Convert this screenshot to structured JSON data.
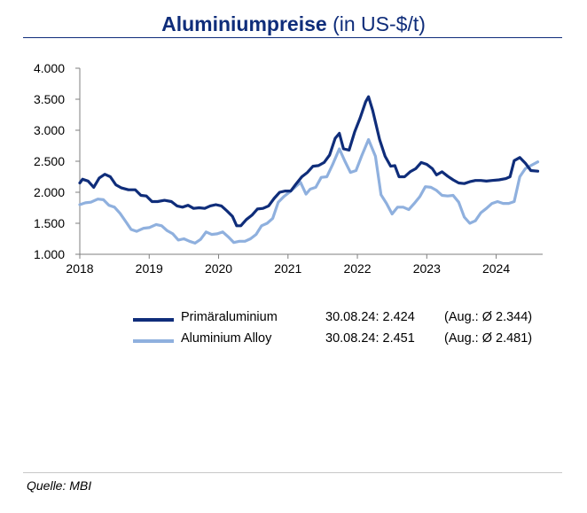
{
  "title": {
    "main": "Aluminiumpreise",
    "unit": "(in US-$/t)"
  },
  "source": "Quelle: MBI",
  "legend": [
    {
      "name": "Primäraluminium",
      "date_value": "30.08.24: 2.424",
      "average": "(Aug.: Ø 2.344)",
      "color": "#0f2d7a"
    },
    {
      "name": "Aluminium Alloy",
      "date_value": "30.08.24: 2.451",
      "average": "(Aug.: Ø 2.481)",
      "color": "#8fb0de"
    }
  ],
  "chart_data": {
    "type": "line",
    "title": "Aluminiumpreise (in US-$/t)",
    "xlabel": "",
    "ylabel": "",
    "xlim": [
      2018.0,
      2024.67
    ],
    "ylim": [
      1000,
      4000
    ],
    "x_ticks": [
      2018,
      2019,
      2020,
      2021,
      2022,
      2023,
      2024
    ],
    "x_tick_labels": [
      "2018",
      "2019",
      "2020",
      "2021",
      "2022",
      "2023",
      "2024"
    ],
    "y_ticks": [
      1000,
      1500,
      2000,
      2500,
      3000,
      3500,
      4000
    ],
    "y_tick_labels": [
      "1.000",
      "1.500",
      "2.000",
      "2.500",
      "3.000",
      "3.500",
      "4.000"
    ],
    "grid": false,
    "legend_position": "bottom",
    "series": [
      {
        "name": "Primäraluminium",
        "color": "#0f2d7a",
        "points": [
          [
            2018.0,
            2150
          ],
          [
            2018.04,
            2210
          ],
          [
            2018.12,
            2180
          ],
          [
            2018.2,
            2080
          ],
          [
            2018.28,
            2230
          ],
          [
            2018.36,
            2290
          ],
          [
            2018.44,
            2250
          ],
          [
            2018.52,
            2120
          ],
          [
            2018.6,
            2070
          ],
          [
            2018.7,
            2040
          ],
          [
            2018.8,
            2040
          ],
          [
            2018.88,
            1950
          ],
          [
            2018.96,
            1940
          ],
          [
            2019.04,
            1850
          ],
          [
            2019.12,
            1850
          ],
          [
            2019.22,
            1870
          ],
          [
            2019.32,
            1850
          ],
          [
            2019.4,
            1780
          ],
          [
            2019.48,
            1760
          ],
          [
            2019.56,
            1790
          ],
          [
            2019.64,
            1740
          ],
          [
            2019.72,
            1750
          ],
          [
            2019.8,
            1740
          ],
          [
            2019.88,
            1780
          ],
          [
            2019.96,
            1800
          ],
          [
            2020.04,
            1780
          ],
          [
            2020.12,
            1700
          ],
          [
            2020.2,
            1610
          ],
          [
            2020.26,
            1460
          ],
          [
            2020.32,
            1460
          ],
          [
            2020.4,
            1560
          ],
          [
            2020.48,
            1630
          ],
          [
            2020.56,
            1730
          ],
          [
            2020.64,
            1740
          ],
          [
            2020.72,
            1780
          ],
          [
            2020.8,
            1900
          ],
          [
            2020.88,
            2000
          ],
          [
            2020.96,
            2020
          ],
          [
            2021.04,
            2020
          ],
          [
            2021.12,
            2140
          ],
          [
            2021.2,
            2250
          ],
          [
            2021.28,
            2320
          ],
          [
            2021.36,
            2420
          ],
          [
            2021.44,
            2430
          ],
          [
            2021.52,
            2480
          ],
          [
            2021.6,
            2600
          ],
          [
            2021.68,
            2870
          ],
          [
            2021.74,
            2950
          ],
          [
            2021.8,
            2700
          ],
          [
            2021.88,
            2680
          ],
          [
            2021.96,
            2970
          ],
          [
            2022.04,
            3200
          ],
          [
            2022.12,
            3460
          ],
          [
            2022.16,
            3540
          ],
          [
            2022.22,
            3320
          ],
          [
            2022.32,
            2850
          ],
          [
            2022.4,
            2580
          ],
          [
            2022.48,
            2420
          ],
          [
            2022.54,
            2430
          ],
          [
            2022.6,
            2250
          ],
          [
            2022.68,
            2250
          ],
          [
            2022.76,
            2330
          ],
          [
            2022.84,
            2380
          ],
          [
            2022.92,
            2480
          ],
          [
            2023.0,
            2450
          ],
          [
            2023.08,
            2380
          ],
          [
            2023.14,
            2280
          ],
          [
            2023.22,
            2330
          ],
          [
            2023.3,
            2260
          ],
          [
            2023.38,
            2200
          ],
          [
            2023.46,
            2150
          ],
          [
            2023.54,
            2140
          ],
          [
            2023.62,
            2170
          ],
          [
            2023.7,
            2190
          ],
          [
            2023.78,
            2190
          ],
          [
            2023.86,
            2180
          ],
          [
            2023.94,
            2190
          ],
          [
            2024.04,
            2200
          ],
          [
            2024.14,
            2220
          ],
          [
            2024.2,
            2250
          ],
          [
            2024.26,
            2510
          ],
          [
            2024.34,
            2560
          ],
          [
            2024.42,
            2470
          ],
          [
            2024.5,
            2350
          ],
          [
            2024.6,
            2340
          ]
        ]
      },
      {
        "name": "Aluminium Alloy",
        "color": "#8fb0de",
        "points": [
          [
            2018.0,
            1800
          ],
          [
            2018.08,
            1830
          ],
          [
            2018.16,
            1840
          ],
          [
            2018.26,
            1890
          ],
          [
            2018.34,
            1880
          ],
          [
            2018.42,
            1790
          ],
          [
            2018.5,
            1760
          ],
          [
            2018.58,
            1660
          ],
          [
            2018.66,
            1530
          ],
          [
            2018.74,
            1400
          ],
          [
            2018.82,
            1370
          ],
          [
            2018.92,
            1420
          ],
          [
            2019.0,
            1430
          ],
          [
            2019.1,
            1480
          ],
          [
            2019.18,
            1460
          ],
          [
            2019.26,
            1380
          ],
          [
            2019.34,
            1330
          ],
          [
            2019.42,
            1230
          ],
          [
            2019.5,
            1250
          ],
          [
            2019.58,
            1210
          ],
          [
            2019.66,
            1180
          ],
          [
            2019.74,
            1240
          ],
          [
            2019.82,
            1360
          ],
          [
            2019.9,
            1320
          ],
          [
            2019.98,
            1330
          ],
          [
            2020.06,
            1360
          ],
          [
            2020.14,
            1280
          ],
          [
            2020.22,
            1190
          ],
          [
            2020.3,
            1210
          ],
          [
            2020.38,
            1210
          ],
          [
            2020.46,
            1250
          ],
          [
            2020.54,
            1320
          ],
          [
            2020.62,
            1460
          ],
          [
            2020.7,
            1500
          ],
          [
            2020.78,
            1580
          ],
          [
            2020.86,
            1840
          ],
          [
            2020.94,
            1930
          ],
          [
            2021.02,
            2000
          ],
          [
            2021.1,
            2080
          ],
          [
            2021.18,
            2160
          ],
          [
            2021.26,
            1970
          ],
          [
            2021.32,
            2050
          ],
          [
            2021.4,
            2080
          ],
          [
            2021.48,
            2240
          ],
          [
            2021.56,
            2250
          ],
          [
            2021.64,
            2440
          ],
          [
            2021.74,
            2700
          ],
          [
            2021.82,
            2500
          ],
          [
            2021.9,
            2320
          ],
          [
            2021.98,
            2350
          ],
          [
            2022.06,
            2580
          ],
          [
            2022.16,
            2850
          ],
          [
            2022.26,
            2580
          ],
          [
            2022.34,
            1960
          ],
          [
            2022.42,
            1820
          ],
          [
            2022.5,
            1650
          ],
          [
            2022.58,
            1760
          ],
          [
            2022.66,
            1760
          ],
          [
            2022.74,
            1720
          ],
          [
            2022.82,
            1820
          ],
          [
            2022.9,
            1930
          ],
          [
            2022.98,
            2090
          ],
          [
            2023.06,
            2080
          ],
          [
            2023.14,
            2030
          ],
          [
            2023.22,
            1950
          ],
          [
            2023.3,
            1940
          ],
          [
            2023.38,
            1950
          ],
          [
            2023.46,
            1840
          ],
          [
            2023.54,
            1600
          ],
          [
            2023.62,
            1500
          ],
          [
            2023.7,
            1540
          ],
          [
            2023.78,
            1670
          ],
          [
            2023.86,
            1740
          ],
          [
            2023.94,
            1820
          ],
          [
            2024.02,
            1850
          ],
          [
            2024.1,
            1820
          ],
          [
            2024.18,
            1820
          ],
          [
            2024.26,
            1850
          ],
          [
            2024.34,
            2250
          ],
          [
            2024.42,
            2380
          ],
          [
            2024.5,
            2430
          ],
          [
            2024.6,
            2490
          ]
        ]
      }
    ]
  }
}
